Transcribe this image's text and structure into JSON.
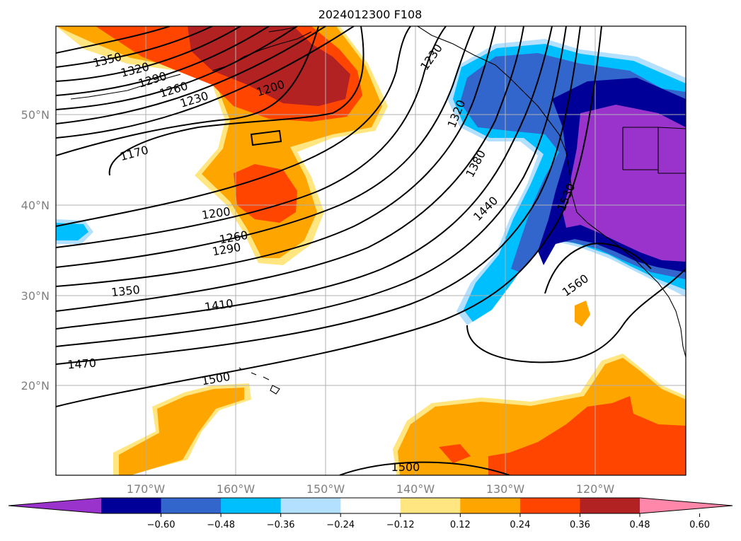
{
  "title": "2024012300 F108",
  "map": {
    "lat_labels": [
      "50°N",
      "40°N",
      "30°N",
      "20°N"
    ],
    "lon_labels": [
      "170°W",
      "160°W",
      "150°W",
      "140°W",
      "130°W",
      "120°W"
    ]
  },
  "contour_labels": [
    "1350",
    "1320",
    "1290",
    "1260",
    "1230",
    "1200",
    "1170",
    "1200",
    "1260",
    "1290",
    "1350",
    "1410",
    "1470",
    "1500",
    "1230",
    "1320",
    "1380",
    "1440",
    "1530",
    "1560",
    "1500"
  ],
  "colorbar": {
    "tick_labels": [
      "−0.60",
      "−0.48",
      "−0.36",
      "−0.24",
      "−0.12",
      "0.12",
      "0.24",
      "0.36",
      "0.48",
      "0.60"
    ],
    "colors": [
      "#9933cc",
      "#000099",
      "#3366cc",
      "#00bfff",
      "#b3e0ff",
      "#ffffff",
      "#ffe680",
      "#ffa500",
      "#ff4500",
      "#b22222",
      "#ff88aa"
    ]
  }
}
